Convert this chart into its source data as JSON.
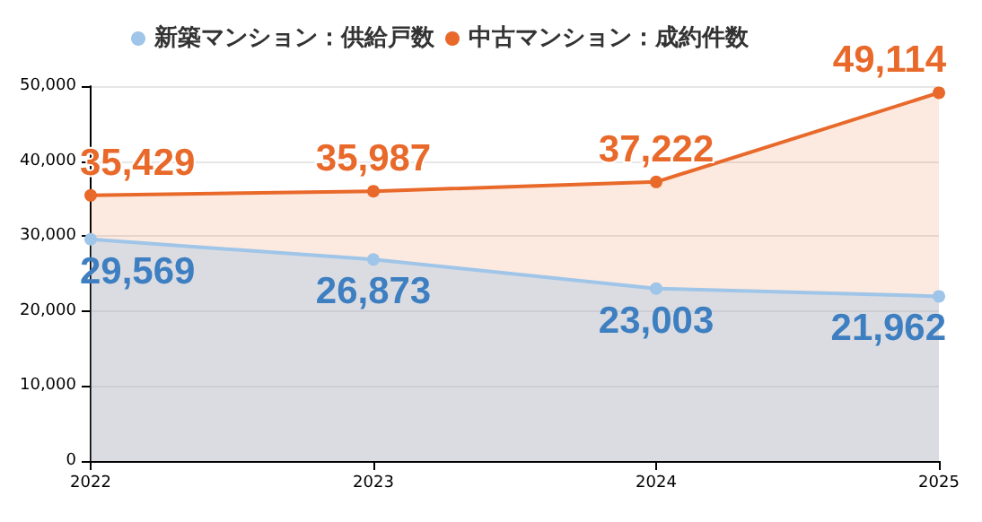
{
  "chart_data": {
    "type": "area",
    "categories": [
      "2022",
      "2023",
      "2024",
      "2025"
    ],
    "series": [
      {
        "name": "新築マンション：供給戸数",
        "color": "#9fc5e8",
        "values": [
          29569,
          26873,
          23003,
          21962
        ],
        "value_labels": [
          "29,569",
          "26,873",
          "23,003",
          "21,962"
        ]
      },
      {
        "name": "中古マンション：成約件数",
        "color": "#e8692a",
        "values": [
          35429,
          35987,
          37222,
          49114
        ],
        "value_labels": [
          "35,429",
          "35,987",
          "37,222",
          "49,114"
        ]
      }
    ],
    "ylim": [
      0,
      50000
    ],
    "yticks": [
      {
        "value": 0,
        "label": "0"
      },
      {
        "value": 10000,
        "label": "10,000"
      },
      {
        "value": 20000,
        "label": "20,000"
      },
      {
        "value": 30000,
        "label": "30,000"
      },
      {
        "value": 40000,
        "label": "40,000"
      },
      {
        "value": 50000,
        "label": "50,000"
      }
    ],
    "grid": "y",
    "legend": "top",
    "marker": "circle"
  }
}
